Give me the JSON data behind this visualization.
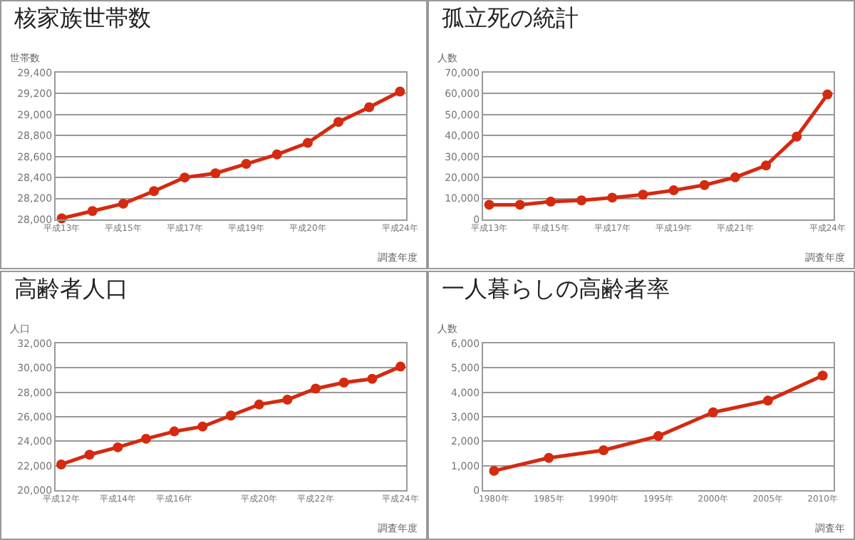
{
  "chart_data": [
    {
      "type": "line",
      "title": "核家族世帯数",
      "ylabel": "世帯数",
      "xlabel": "調査年度",
      "categories": [
        "平成13年",
        null,
        "平成15年",
        null,
        "平成17年",
        null,
        "平成19年",
        null,
        "平成20年",
        null,
        null,
        "平成24年"
      ],
      "series": [
        {
          "color": "#d42a10",
          "values": [
            28010,
            28080,
            28150,
            28270,
            28400,
            28440,
            28530,
            28620,
            28730,
            28930,
            29070,
            29220
          ]
        }
      ],
      "ylim": [
        28000,
        29400
      ],
      "yticks": [
        {
          "value": 28000,
          "label": "28,000"
        },
        {
          "value": 28200,
          "label": "28,200"
        },
        {
          "value": 28400,
          "label": "28,400"
        },
        {
          "value": 28600,
          "label": "28,600"
        },
        {
          "value": 28800,
          "label": "28,800"
        },
        {
          "value": 29000,
          "label": "29,000"
        },
        {
          "value": 29200,
          "label": "29,200"
        },
        {
          "value": 29400,
          "label": "29,400"
        }
      ],
      "grid": "y",
      "marker": "circle",
      "line_style": "solid"
    },
    {
      "type": "line",
      "title": "孤立死の統計",
      "ylabel": "人数",
      "xlabel": "調査年度",
      "categories": [
        "平成13年",
        null,
        "平成15年",
        null,
        "平成17年",
        null,
        "平成19年",
        null,
        "平成21年",
        null,
        null,
        "平成24年"
      ],
      "series": [
        {
          "color": "#d42a10",
          "values": [
            7000,
            7000,
            8500,
            9100,
            10400,
            11800,
            13900,
            16400,
            20100,
            25700,
            39500,
            59600
          ]
        }
      ],
      "ylim": [
        0,
        70000
      ],
      "yticks": [
        0,
        {
          "value": 10000,
          "label": "10,000"
        },
        {
          "value": 20000,
          "label": "20,000"
        },
        {
          "value": 30000,
          "label": "30,000"
        },
        {
          "value": 40000,
          "label": "40,000"
        },
        {
          "value": 50000,
          "label": "50,000"
        },
        {
          "value": 60000,
          "label": "60,000"
        },
        {
          "value": 70000,
          "label": "70,000"
        }
      ],
      "grid": "y",
      "marker": "circle",
      "line_style": "solid"
    },
    {
      "type": "line",
      "title": "高齢者人口",
      "ylabel": "人口",
      "xlabel": "調査年度",
      "categories": [
        "平成12年",
        null,
        "平成14年",
        null,
        "平成16年",
        null,
        null,
        "平成20年",
        null,
        "平成22年",
        null,
        null,
        "平成24年"
      ],
      "series": [
        {
          "color": "#d42a10",
          "values": [
            22100,
            22900,
            23500,
            24200,
            24800,
            25200,
            26100,
            27000,
            27400,
            28300,
            28800,
            29100,
            30100
          ]
        }
      ],
      "ylim": [
        20000,
        32000
      ],
      "yticks": [
        {
          "value": 20000,
          "label": "20,000"
        },
        {
          "value": 22000,
          "label": "22,000"
        },
        {
          "value": 24000,
          "label": "24,000"
        },
        {
          "value": 26000,
          "label": "26,000"
        },
        {
          "value": 28000,
          "label": "28,000"
        },
        {
          "value": 30000,
          "label": "30,000"
        },
        {
          "value": 32000,
          "label": "32,000"
        }
      ],
      "grid": "y",
      "marker": "circle",
      "line_style": "solid"
    },
    {
      "type": "line",
      "title": "一人暮らしの高齢者率",
      "ylabel": "人数",
      "xlabel": "調査年",
      "categories": [
        "1980年",
        "1985年",
        "1990年",
        "1995年",
        "2000年",
        "2005年",
        "2010年"
      ],
      "series": [
        {
          "color": "#d42a10",
          "values": [
            790,
            1320,
            1630,
            2210,
            3180,
            3660,
            4680
          ]
        }
      ],
      "ylim": [
        0,
        6000
      ],
      "yticks": [
        0,
        {
          "value": 1000,
          "label": "1,000"
        },
        {
          "value": 2000,
          "label": "2,000"
        },
        {
          "value": 3000,
          "label": "3,000"
        },
        {
          "value": 4000,
          "label": "4,000"
        },
        {
          "value": 5000,
          "label": "5,000"
        },
        {
          "value": 6000,
          "label": "6,000"
        }
      ],
      "grid": "y",
      "marker": "circle",
      "line_style": "solid"
    }
  ]
}
